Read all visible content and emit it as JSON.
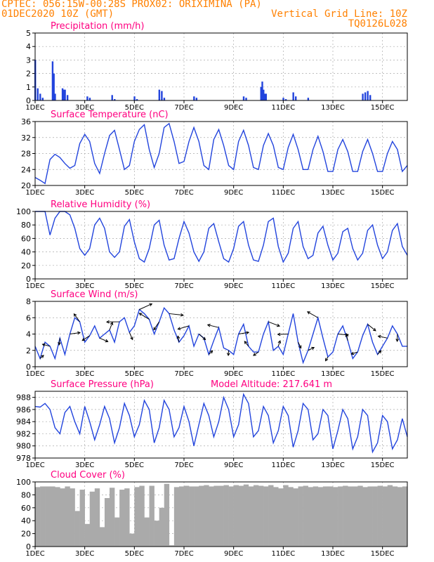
{
  "header": {
    "line1_left": "CPTEC:  056:15W-00:28S  PROX02: ORIXIMINA (PA)",
    "line2_left": "01DEC2020 10Z (GMT)",
    "line2_right": "Vertical Grid Line: 10Z",
    "line3_right": "TQ0126L028",
    "text_color": "#ff8000"
  },
  "colors": {
    "title": "#ff0080",
    "line": "#2244dd",
    "bar": "#2244dd",
    "cloud": "#aaaaaa",
    "arrow": "#000000"
  },
  "x_axis": {
    "tick_labels": [
      "1DEC",
      "3DEC",
      "5DEC",
      "7DEC",
      "9DEC",
      "11DEC",
      "13DEC",
      "15DEC"
    ],
    "tick_days": [
      1,
      3,
      5,
      7,
      9,
      11,
      13,
      15
    ],
    "range_days": [
      1,
      16.0
    ]
  },
  "chart_data": [
    {
      "type": "bar",
      "title": "Precipitation (mm/h)",
      "ylim": [
        0,
        5
      ],
      "yticks": [
        "0",
        "1",
        "2",
        "3",
        "4",
        "5"
      ],
      "x_days": [
        1.0,
        1.1,
        1.2,
        1.3,
        1.7,
        1.75,
        1.8,
        2.1,
        2.15,
        2.2,
        2.3,
        3.1,
        3.2,
        4.1,
        4.2,
        5.0,
        5.1,
        6.0,
        6.1,
        6.2,
        7.4,
        7.5,
        9.4,
        9.5,
        10.1,
        10.15,
        10.2,
        10.25,
        10.3,
        11.0,
        11.1,
        11.4,
        11.5,
        12.0,
        14.2,
        14.3,
        14.4,
        14.5
      ],
      "values": [
        3.0,
        0.9,
        0.5,
        0.2,
        2.9,
        2.0,
        0.5,
        0.9,
        0.8,
        0.8,
        0.4,
        0.3,
        0.2,
        0.4,
        0.1,
        0.3,
        0.1,
        0.8,
        0.7,
        0.2,
        0.3,
        0.2,
        0.3,
        0.2,
        1.0,
        1.4,
        0.8,
        0.5,
        0.5,
        0.2,
        0.1,
        0.6,
        0.3,
        0.2,
        0.5,
        0.6,
        0.7,
        0.4
      ]
    },
    {
      "type": "line",
      "title": "Surface Temperature (nC)",
      "ylim": [
        20,
        36
      ],
      "yticks": [
        "20",
        "24",
        "28",
        "32",
        "36"
      ],
      "x_days": [
        1.0,
        1.2,
        1.4,
        1.6,
        1.8,
        2.0,
        2.2,
        2.4,
        2.6,
        2.8,
        3.0,
        3.2,
        3.4,
        3.6,
        3.8,
        4.0,
        4.2,
        4.4,
        4.6,
        4.8,
        5.0,
        5.2,
        5.4,
        5.6,
        5.8,
        6.0,
        6.2,
        6.4,
        6.6,
        6.8,
        7.0,
        7.2,
        7.4,
        7.6,
        7.8,
        8.0,
        8.2,
        8.4,
        8.6,
        8.8,
        9.0,
        9.2,
        9.4,
        9.6,
        9.8,
        10.0,
        10.2,
        10.4,
        10.6,
        10.8,
        11.0,
        11.2,
        11.4,
        11.6,
        11.8,
        12.0,
        12.2,
        12.4,
        12.6,
        12.8,
        13.0,
        13.2,
        13.4,
        13.6,
        13.8,
        14.0,
        14.2,
        14.4,
        14.6,
        14.8,
        15.0,
        15.2,
        15.4,
        15.6,
        15.8,
        16.0
      ],
      "values": [
        22,
        21.3,
        20.5,
        26.5,
        27.8,
        27,
        25.5,
        24.3,
        25,
        30.5,
        32.8,
        31,
        25.5,
        23,
        28,
        32.5,
        33.8,
        29,
        24,
        25,
        31,
        34,
        35.2,
        29,
        24.5,
        28,
        34.5,
        35.5,
        31,
        25.5,
        26,
        31,
        34.5,
        31,
        25,
        24,
        31.5,
        34,
        30,
        25,
        24,
        31,
        33.8,
        30,
        24.5,
        24,
        30,
        33,
        30,
        24.5,
        24,
        29.5,
        32.8,
        29,
        24,
        24,
        29,
        32.3,
        28.5,
        23.5,
        23.5,
        29,
        31.5,
        28.5,
        23.5,
        23.5,
        28.5,
        31.5,
        28,
        23.5,
        23.5,
        28,
        31,
        29,
        23.5,
        25
      ]
    },
    {
      "type": "line",
      "title": "Relative Humidity (%)",
      "ylim": [
        0,
        100
      ],
      "yticks": [
        "0",
        "20",
        "40",
        "60",
        "80",
        "100"
      ],
      "x_days": [
        1.0,
        1.2,
        1.4,
        1.6,
        1.8,
        2.0,
        2.2,
        2.4,
        2.6,
        2.8,
        3.0,
        3.2,
        3.4,
        3.6,
        3.8,
        4.0,
        4.2,
        4.4,
        4.6,
        4.8,
        5.0,
        5.2,
        5.4,
        5.6,
        5.8,
        6.0,
        6.2,
        6.4,
        6.6,
        6.8,
        7.0,
        7.2,
        7.4,
        7.6,
        7.8,
        8.0,
        8.2,
        8.4,
        8.6,
        8.8,
        9.0,
        9.2,
        9.4,
        9.6,
        9.8,
        10.0,
        10.2,
        10.4,
        10.6,
        10.8,
        11.0,
        11.2,
        11.4,
        11.6,
        11.8,
        12.0,
        12.2,
        12.4,
        12.6,
        12.8,
        13.0,
        13.2,
        13.4,
        13.6,
        13.8,
        14.0,
        14.2,
        14.4,
        14.6,
        14.8,
        15.0,
        15.2,
        15.4,
        15.6,
        15.8,
        16.0
      ],
      "values": [
        100,
        100,
        100,
        65,
        90,
        100,
        100,
        95,
        75,
        45,
        35,
        45,
        80,
        90,
        75,
        40,
        32,
        40,
        78,
        88,
        55,
        30,
        25,
        45,
        80,
        87,
        50,
        28,
        30,
        60,
        85,
        68,
        40,
        26,
        40,
        75,
        82,
        55,
        30,
        25,
        45,
        78,
        85,
        50,
        28,
        26,
        50,
        85,
        90,
        48,
        25,
        38,
        75,
        85,
        48,
        30,
        35,
        68,
        78,
        50,
        28,
        38,
        70,
        75,
        45,
        28,
        38,
        72,
        80,
        50,
        30,
        40,
        72,
        82,
        48,
        35
      ]
    },
    {
      "type": "line",
      "title": "Surface Wind (m/s)",
      "ylim": [
        0,
        8
      ],
      "yticks": [
        "0",
        "2",
        "4",
        "6",
        "8"
      ],
      "has_direction_arrows": true,
      "x_days": [
        1.0,
        1.2,
        1.4,
        1.6,
        1.8,
        2.0,
        2.2,
        2.4,
        2.6,
        2.8,
        3.0,
        3.2,
        3.4,
        3.6,
        3.8,
        4.0,
        4.2,
        4.4,
        4.6,
        4.8,
        5.0,
        5.2,
        5.4,
        5.6,
        5.8,
        6.0,
        6.2,
        6.4,
        6.6,
        6.8,
        7.0,
        7.2,
        7.4,
        7.6,
        7.8,
        8.0,
        8.2,
        8.4,
        8.6,
        8.8,
        9.0,
        9.2,
        9.4,
        9.6,
        9.8,
        10.0,
        10.2,
        10.4,
        10.6,
        10.8,
        11.0,
        11.2,
        11.4,
        11.6,
        11.8,
        12.0,
        12.2,
        12.4,
        12.6,
        12.8,
        13.0,
        13.2,
        13.4,
        13.6,
        13.8,
        14.0,
        14.2,
        14.4,
        14.6,
        14.8,
        15.0,
        15.2,
        15.4,
        15.6,
        15.8,
        16.0
      ],
      "values": [
        2.5,
        1,
        3,
        2.5,
        1,
        3.5,
        1.5,
        4,
        6,
        5.5,
        3,
        3.8,
        5,
        3.5,
        4,
        4.5,
        3,
        5.5,
        6,
        4.2,
        5,
        7,
        6.5,
        5.8,
        4,
        5.5,
        7.2,
        6.5,
        4.5,
        3,
        3.8,
        5,
        2.5,
        4,
        3.5,
        1.5,
        3.2,
        4.8,
        2.3,
        2,
        1.5,
        4,
        5.2,
        2.5,
        1.8,
        1.8,
        4,
        5.5,
        2,
        2.5,
        1.5,
        4,
        6.5,
        3,
        0.5,
        2,
        4,
        6,
        3.5,
        1.2,
        1.8,
        4,
        5,
        3.2,
        1,
        1.8,
        3.8,
        5.2,
        3,
        1.5,
        2.5,
        3.5,
        5,
        4,
        2.5,
        2.5
      ]
    },
    {
      "type": "line",
      "title": "Surface Pressure (hPa)",
      "subtitle": "Model Altitude: 217.641 m",
      "ylim": [
        978,
        989
      ],
      "yticks": [
        "978",
        "980",
        "982",
        "984",
        "986",
        "988"
      ],
      "x_days": [
        1.0,
        1.2,
        1.4,
        1.6,
        1.8,
        2.0,
        2.2,
        2.4,
        2.6,
        2.8,
        3.0,
        3.2,
        3.4,
        3.6,
        3.8,
        4.0,
        4.2,
        4.4,
        4.6,
        4.8,
        5.0,
        5.2,
        5.4,
        5.6,
        5.8,
        6.0,
        6.2,
        6.4,
        6.6,
        6.8,
        7.0,
        7.2,
        7.4,
        7.6,
        7.8,
        8.0,
        8.2,
        8.4,
        8.6,
        8.8,
        9.0,
        9.2,
        9.4,
        9.6,
        9.8,
        10.0,
        10.2,
        10.4,
        10.6,
        10.8,
        11.0,
        11.2,
        11.4,
        11.6,
        11.8,
        12.0,
        12.2,
        12.4,
        12.6,
        12.8,
        13.0,
        13.2,
        13.4,
        13.6,
        13.8,
        14.0,
        14.2,
        14.4,
        14.6,
        14.8,
        15.0,
        15.2,
        15.4,
        15.6,
        15.8,
        16.0
      ],
      "values": [
        986.5,
        986.4,
        987,
        986,
        983,
        982,
        985.5,
        986.5,
        984,
        982,
        986.5,
        984,
        981,
        983.5,
        986.5,
        984.5,
        980.5,
        983,
        987,
        985,
        981.5,
        983.5,
        987.5,
        986,
        980.5,
        983,
        987.5,
        986,
        981.5,
        983,
        986.5,
        984,
        980,
        983.5,
        987,
        985,
        981.5,
        984,
        988,
        986,
        981.5,
        983.5,
        988.5,
        987,
        981.5,
        982.5,
        986.5,
        985,
        980.5,
        982.5,
        986.5,
        985,
        979.8,
        982.5,
        987,
        986,
        981,
        982,
        986,
        985,
        979.5,
        982.5,
        986,
        984.5,
        979.5,
        981.5,
        986,
        985,
        979,
        980.5,
        985,
        984,
        979.5,
        981,
        984.5,
        981.5
      ]
    },
    {
      "type": "area",
      "title": "Cloud Cover (%)",
      "ylim": [
        0,
        100
      ],
      "yticks": [
        "0",
        "20",
        "40",
        "60",
        "80",
        "100"
      ],
      "x_days": [
        1.0,
        1.2,
        1.4,
        1.6,
        1.8,
        2.0,
        2.2,
        2.4,
        2.6,
        2.8,
        3.0,
        3.2,
        3.4,
        3.6,
        3.8,
        4.0,
        4.2,
        4.4,
        4.6,
        4.8,
        5.0,
        5.2,
        5.4,
        5.6,
        5.8,
        6.0,
        6.2,
        6.4,
        6.6,
        6.8,
        7.0,
        7.2,
        7.4,
        7.6,
        7.8,
        8.0,
        8.2,
        8.4,
        8.6,
        8.8,
        9.0,
        9.2,
        9.4,
        9.6,
        9.8,
        10.0,
        10.2,
        10.4,
        10.6,
        10.8,
        11.0,
        11.2,
        11.4,
        11.6,
        11.8,
        12.0,
        12.2,
        12.4,
        12.6,
        12.8,
        13.0,
        13.2,
        13.4,
        13.6,
        13.8,
        14.0,
        14.2,
        14.4,
        14.6,
        14.8,
        15.0,
        15.2,
        15.4,
        15.6,
        15.8,
        16.0
      ],
      "values": [
        92,
        93,
        93,
        93,
        92,
        90,
        93,
        90,
        55,
        88,
        35,
        85,
        90,
        30,
        75,
        91,
        45,
        88,
        90,
        20,
        92,
        94,
        45,
        94,
        40,
        60,
        97,
        2,
        92,
        93,
        94,
        93,
        93,
        94,
        95,
        93,
        94,
        94,
        95,
        93,
        95,
        94,
        96,
        93,
        95,
        94,
        93,
        95,
        92,
        90,
        95,
        92,
        90,
        93,
        94,
        92,
        93,
        92,
        93,
        93,
        92,
        93,
        94,
        93,
        93,
        94,
        92,
        93,
        93,
        94,
        93,
        95,
        93,
        92,
        93,
        92
      ]
    }
  ]
}
